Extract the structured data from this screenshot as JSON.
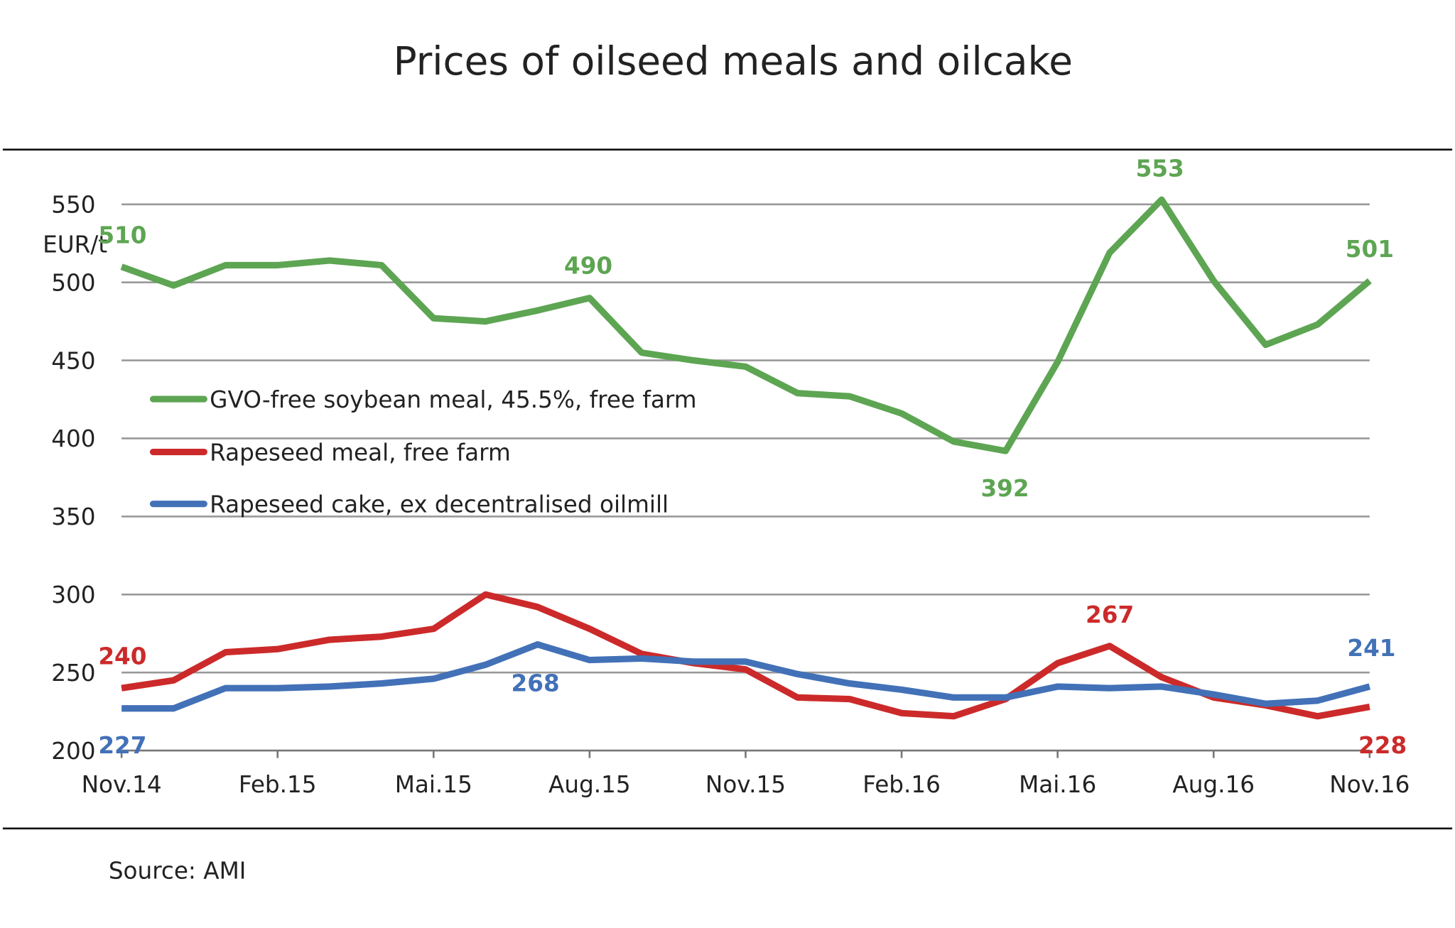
{
  "chart_data": {
    "type": "line",
    "title": "Prices of oilseed meals and oilcake",
    "ylabel": "EUR/t",
    "ylim": [
      200,
      550
    ],
    "yticks": [
      200,
      250,
      300,
      350,
      400,
      450,
      500,
      550
    ],
    "grid": true,
    "legend_placement": "center-left",
    "x": [
      "Nov.14",
      "Dec.14",
      "Jan.15",
      "Feb.15",
      "Mar.15",
      "Apr.15",
      "Mai.15",
      "Jun.15",
      "Jul.15",
      "Aug.15",
      "Sep.15",
      "Oct.15",
      "Nov.15",
      "Dec.15",
      "Jan.16",
      "Feb.16",
      "Mar.16",
      "Apr.16",
      "Mai.16",
      "Jun.16",
      "Jul.16",
      "Aug.16",
      "Sep.16",
      "Oct.16",
      "Nov.16"
    ],
    "xtick_labels": [
      "Nov.14",
      "Feb.15",
      "Mai.15",
      "Aug.15",
      "Nov.15",
      "Feb.16",
      "Mai.16",
      "Aug.16",
      "Nov.16"
    ],
    "series": [
      {
        "name": "GVO-free soybean meal, 45.5%, free farm",
        "color": "#5da552",
        "values": [
          510,
          498,
          511,
          511,
          514,
          511,
          477,
          475,
          482,
          490,
          455,
          450,
          446,
          429,
          427,
          416,
          398,
          392,
          449,
          519,
          553,
          501,
          460,
          473,
          501
        ],
        "data_labels": [
          {
            "index": 0,
            "text": "510"
          },
          {
            "index": 9,
            "text": "490"
          },
          {
            "index": 17,
            "text": "392"
          },
          {
            "index": 20,
            "text": "553"
          },
          {
            "index": 24,
            "text": "501"
          }
        ]
      },
      {
        "name": "Rapeseed meal, free farm",
        "color": "#cc2a2a",
        "values": [
          240,
          245,
          263,
          265,
          271,
          273,
          278,
          300,
          292,
          278,
          262,
          256,
          252,
          234,
          233,
          224,
          222,
          233,
          256,
          267,
          247,
          234,
          229,
          222,
          228
        ],
        "data_labels": [
          {
            "index": 0,
            "text": "240"
          },
          {
            "index": 19,
            "text": "267"
          },
          {
            "index": 24,
            "text": "228"
          }
        ]
      },
      {
        "name": "Rapeseed cake, ex decentralised oilmill",
        "color": "#4271b7",
        "values": [
          227,
          227,
          240,
          240,
          241,
          243,
          246,
          255,
          268,
          258,
          259,
          257,
          257,
          249,
          243,
          239,
          234,
          234,
          241,
          240,
          241,
          236,
          230,
          232,
          241
        ],
        "data_labels": [
          {
            "index": 0,
            "text": "227"
          },
          {
            "index": 8,
            "text": "268"
          },
          {
            "index": 24,
            "text": "241"
          }
        ]
      }
    ],
    "source": "Source: AMI"
  }
}
